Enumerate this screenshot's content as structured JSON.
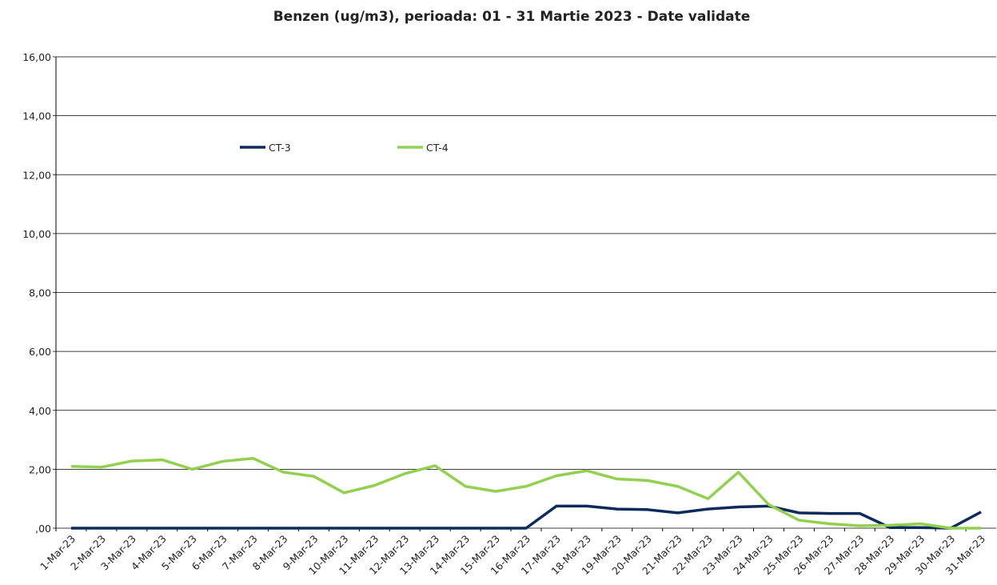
{
  "chart_data": {
    "type": "line",
    "title": "Benzen (ug/m3), perioada: 01 - 31 Martie 2023 - Date validate",
    "categories": [
      "1-Mar-23",
      "2-Mar-23",
      "3-Mar-23",
      "4-Mar-23",
      "5-Mar-23",
      "6-Mar-23",
      "7-Mar-23",
      "8-Mar-23",
      "9-Mar-23",
      "10-Mar-23",
      "11-Mar-23",
      "12-Mar-23",
      "13-Mar-23",
      "14-Mar-23",
      "15-Mar-23",
      "16-Mar-23",
      "17-Mar-23",
      "18-Mar-23",
      "19-Mar-23",
      "20-Mar-23",
      "21-Mar-23",
      "22-Mar-23",
      "23-Mar-23",
      "24-Mar-23",
      "25-Mar-23",
      "26-Mar-23",
      "27-Mar-23",
      "28-Mar-23",
      "29-Mar-23",
      "30-Mar-23",
      "31-Mar-23"
    ],
    "series": [
      {
        "name": "CT-3",
        "color": "#0d2a5c",
        "values": [
          0,
          0,
          0,
          0,
          0,
          0,
          0,
          0,
          0,
          0,
          0,
          0,
          0,
          0,
          0,
          0,
          0.75,
          0.75,
          0.65,
          0.63,
          0.52,
          0.65,
          0.72,
          0.75,
          0.52,
          0.5,
          0.5,
          0.02,
          0.02,
          0,
          0.55
        ]
      },
      {
        "name": "CT-4",
        "color": "#92d050",
        "values": [
          2.1,
          2.07,
          2.28,
          2.32,
          2.0,
          2.27,
          2.37,
          1.9,
          1.76,
          1.2,
          1.45,
          1.85,
          2.12,
          1.42,
          1.25,
          1.42,
          1.78,
          1.95,
          1.67,
          1.62,
          1.42,
          1.0,
          1.9,
          0.8,
          0.27,
          0.15,
          0.08,
          0.1,
          0.15,
          0,
          0
        ]
      }
    ],
    "ylim": [
      0,
      16
    ],
    "yticks": [
      {
        "value": 0,
        "label": ",00"
      },
      {
        "value": 2,
        "label": "2,00"
      },
      {
        "value": 4,
        "label": "4,00"
      },
      {
        "value": 6,
        "label": "6,00"
      },
      {
        "value": 8,
        "label": "8,00"
      },
      {
        "value": 10,
        "label": "10,00"
      },
      {
        "value": 12,
        "label": "12,00"
      },
      {
        "value": 14,
        "label": "14,00"
      },
      {
        "value": 16,
        "label": "16,00"
      }
    ],
    "grid": true
  }
}
